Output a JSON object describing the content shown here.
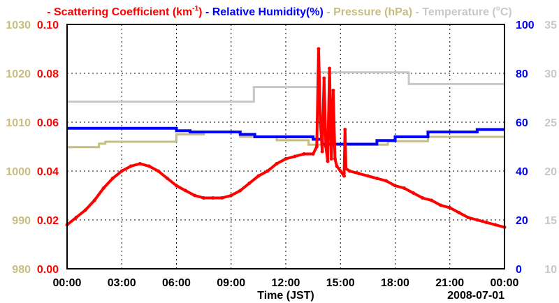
{
  "chart_data": {
    "type": "line",
    "legend": [
      {
        "name": "Scattering Coefficient (km",
        "sup": "-1",
        "tail": ")",
        "color": "#ff0000"
      },
      {
        "name": "Relative Humidity(%)",
        "color": "#0000ff"
      },
      {
        "name": "Pressure (hPa)",
        "color": "#c8bd80"
      },
      {
        "name": "Temperature (",
        "sup": "o",
        "tail": "C)",
        "color": "#c8c8c8"
      }
    ],
    "xlabel": "Time (JST)",
    "date_label": "2008-07-01",
    "xlim": [
      0,
      24
    ],
    "x_ticks": [
      {
        "v": 0,
        "l": "00:00"
      },
      {
        "v": 3,
        "l": "03:00"
      },
      {
        "v": 6,
        "l": "06:00"
      },
      {
        "v": 9,
        "l": "09:00"
      },
      {
        "v": 12,
        "l": "12:00"
      },
      {
        "v": 15,
        "l": "15:00"
      },
      {
        "v": 18,
        "l": "18:00"
      },
      {
        "v": 21,
        "l": "21:00"
      },
      {
        "v": 24,
        "l": "00:00"
      }
    ],
    "axes": {
      "scattering": {
        "lim": [
          0,
          0.1
        ],
        "ticks": [
          "0.00",
          "0.02",
          "0.04",
          "0.06",
          "0.08",
          "0.10"
        ],
        "color": "#ff0000"
      },
      "pressure": {
        "lim": [
          980,
          1030
        ],
        "ticks": [
          "980",
          "990",
          "1000",
          "1010",
          "1020",
          "1030"
        ],
        "color": "#c8bd80"
      },
      "humidity": {
        "lim": [
          0,
          100
        ],
        "ticks": [
          "0",
          "20",
          "40",
          "60",
          "80",
          "100"
        ],
        "color": "#0000ff"
      },
      "temperature": {
        "lim": [
          10,
          35
        ],
        "ticks": [
          "10",
          "15",
          "20",
          "25",
          "30",
          "35"
        ],
        "color": "#c8c8c8"
      }
    },
    "grid": true,
    "series": {
      "scattering": [
        [
          0,
          0.018
        ],
        [
          0.5,
          0.021
        ],
        [
          1,
          0.024
        ],
        [
          1.5,
          0.028
        ],
        [
          2,
          0.033
        ],
        [
          2.5,
          0.037
        ],
        [
          3,
          0.04
        ],
        [
          3.5,
          0.042
        ],
        [
          4,
          0.043
        ],
        [
          4.5,
          0.042
        ],
        [
          5,
          0.04
        ],
        [
          5.5,
          0.037
        ],
        [
          6,
          0.034
        ],
        [
          6.5,
          0.032
        ],
        [
          7,
          0.03
        ],
        [
          7.5,
          0.029
        ],
        [
          8,
          0.029
        ],
        [
          8.5,
          0.029
        ],
        [
          9,
          0.03
        ],
        [
          9.5,
          0.032
        ],
        [
          10,
          0.035
        ],
        [
          10.5,
          0.038
        ],
        [
          11,
          0.04
        ],
        [
          11.5,
          0.043
        ],
        [
          12,
          0.045
        ],
        [
          12.5,
          0.046
        ],
        [
          13,
          0.047
        ],
        [
          13.5,
          0.047
        ],
        [
          13.7,
          0.05
        ],
        [
          13.8,
          0.09
        ],
        [
          13.9,
          0.06
        ],
        [
          14.0,
          0.048
        ],
        [
          14.1,
          0.078
        ],
        [
          14.2,
          0.05
        ],
        [
          14.3,
          0.044
        ],
        [
          14.4,
          0.082
        ],
        [
          14.5,
          0.045
        ],
        [
          14.6,
          0.073
        ],
        [
          14.7,
          0.045
        ],
        [
          14.8,
          0.042
        ],
        [
          15.0,
          0.04
        ],
        [
          15.2,
          0.038
        ],
        [
          15.25,
          0.057
        ],
        [
          15.3,
          0.041
        ],
        [
          15.5,
          0.04
        ],
        [
          16,
          0.039
        ],
        [
          16.5,
          0.038
        ],
        [
          17,
          0.037
        ],
        [
          17.5,
          0.036
        ],
        [
          18,
          0.034
        ],
        [
          18.5,
          0.033
        ],
        [
          19,
          0.031
        ],
        [
          19.5,
          0.029
        ],
        [
          20,
          0.028
        ],
        [
          20.5,
          0.026
        ],
        [
          21,
          0.025
        ],
        [
          21.5,
          0.023
        ],
        [
          22,
          0.021
        ],
        [
          22.5,
          0.02
        ],
        [
          23,
          0.019
        ],
        [
          23.5,
          0.018
        ],
        [
          24,
          0.017
        ]
      ],
      "humidity": [
        [
          0,
          57.5
        ],
        [
          6,
          56.5
        ],
        [
          6.75,
          56
        ],
        [
          9.5,
          55
        ],
        [
          10.3,
          54
        ],
        [
          13.5,
          53
        ],
        [
          14,
          51
        ],
        [
          17,
          52.5
        ],
        [
          18,
          54
        ],
        [
          19.8,
          56
        ],
        [
          22.5,
          57
        ],
        [
          24,
          57
        ]
      ],
      "pressure": [
        [
          0,
          1004.9
        ],
        [
          1.75,
          1005.6
        ],
        [
          2.1,
          1006
        ],
        [
          6,
          1007.5
        ],
        [
          7.5,
          1008
        ],
        [
          9.5,
          1007
        ],
        [
          11.5,
          1006.3
        ],
        [
          13.25,
          1005.4
        ],
        [
          17.6,
          1006.1
        ],
        [
          19.8,
          1007
        ],
        [
          24,
          1007
        ]
      ],
      "temperature": [
        [
          0,
          27.1
        ],
        [
          10.25,
          28.6
        ],
        [
          13.75,
          30.1
        ],
        [
          18.75,
          28.9
        ],
        [
          24,
          28.9
        ]
      ]
    }
  }
}
